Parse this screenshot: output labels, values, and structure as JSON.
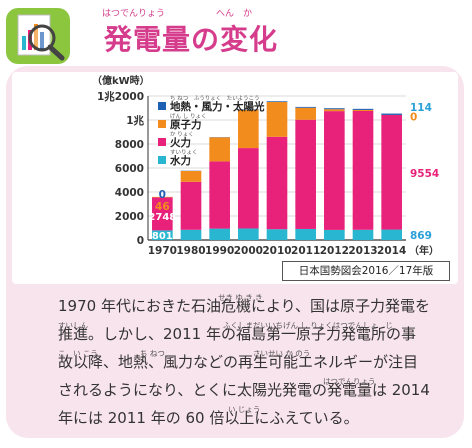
{
  "title": {
    "text": "発電量の変化",
    "ruby_left": "はつでんりょう",
    "ruby_right": "へん　か"
  },
  "chart_data": {
    "type": "bar",
    "ylabel": "（億kW時）",
    "xlabel": "（年）",
    "categories": [
      "1970",
      "1980",
      "1990",
      "2000",
      "2010",
      "2011",
      "2012",
      "2013",
      "2014"
    ],
    "ylim": [
      0,
      12000
    ],
    "yticks": [
      {
        "value": 0,
        "label": "0"
      },
      {
        "value": 2000,
        "label": "2000"
      },
      {
        "value": 4000,
        "label": "4000"
      },
      {
        "value": 6000,
        "label": "6000"
      },
      {
        "value": 8000,
        "label": "8000"
      },
      {
        "value": 10000,
        "label": "1兆"
      },
      {
        "value": 12000,
        "label": "1兆2000"
      }
    ],
    "series": [
      {
        "name": "水力",
        "ruby": "すいりょく",
        "color": "#29b6d1",
        "values": [
          801,
          850,
          950,
          960,
          900,
          920,
          840,
          850,
          869
        ]
      },
      {
        "name": "火力",
        "ruby": "か りょく",
        "color": "#e8227b",
        "values": [
          2748,
          4000,
          5600,
          6700,
          7700,
          9100,
          9900,
          9900,
          9554
        ]
      },
      {
        "name": "原子力",
        "ruby": "げん し りょく",
        "color": "#f28c1c",
        "values": [
          46,
          900,
          2000,
          3200,
          2900,
          1000,
          160,
          90,
          0
        ]
      },
      {
        "name": "地熱・風力・太陽光",
        "ruby": "ち ねつ　ふうりょく　たいようこう",
        "color": "#1f5fb4",
        "values": [
          0,
          20,
          20,
          40,
          60,
          70,
          80,
          90,
          114
        ]
      }
    ],
    "data_labels": {
      "1970": {
        "geo": "0",
        "nuclear": "46",
        "thermal": "2748",
        "hydro": "801"
      },
      "2014": {
        "geo": "114",
        "nuclear": "0",
        "thermal": "9554",
        "hydro": "869"
      }
    },
    "legend_position": "top-left",
    "grid": true
  },
  "source": "日本国勢図会2016／17年版",
  "body": {
    "lines": [
      {
        "text": "1970 年代におきた石油危機により、国は原子力発電を",
        "ruby": [
          {
            "t": "せき ゆ き き",
            "x": 160
          }
        ]
      },
      {
        "text": "推進。しかし、2011 年の福島第一原子力発電所の事",
        "ruby": [
          {
            "t": "すいしん",
            "x": 0
          },
          {
            "t": "ふくしまだいいちげん し りょくはつでんしょ　じ",
            "x": 165
          }
        ]
      },
      {
        "text": "故以降、地熱、風力などの再生可能エネルギーが注目",
        "ruby": [
          {
            "t": "こ　い こう",
            "x": 0
          },
          {
            "t": "ち ねつ",
            "x": 82
          },
          {
            "t": "さいせい か のう",
            "x": 195
          }
        ]
      },
      {
        "text": "されるようになり、とくに太陽光発電の発電量は 2014",
        "ruby": [
          {
            "t": "はつでんりょう",
            "x": 265
          }
        ]
      },
      {
        "text": "年には 2011 年の 60 倍以上にふえている。",
        "ruby": [
          {
            "t": "い じょう",
            "x": 170
          }
        ]
      }
    ]
  }
}
